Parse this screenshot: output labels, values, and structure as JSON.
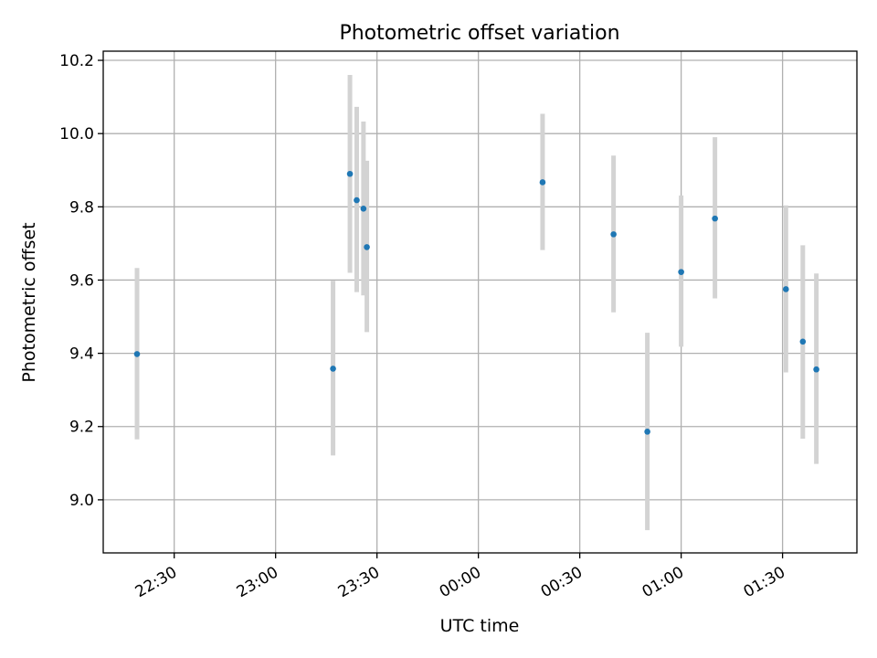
{
  "chart_data": {
    "type": "scatter",
    "title": "Photometric offset variation",
    "xlabel": "UTC time",
    "ylabel": "Photometric offset",
    "x_ticks": [
      "22:30",
      "23:00",
      "23:30",
      "00:00",
      "00:30",
      "01:00",
      "01:30"
    ],
    "y_ticks": [
      "9.0",
      "9.2",
      "9.4",
      "9.6",
      "9.8",
      "10.0",
      "10.2"
    ],
    "xlim": [
      "22:09",
      "01:52"
    ],
    "ylim": [
      8.855,
      10.225
    ],
    "grid": true,
    "errorbar_color": "#d3d3d3",
    "marker_color": "#1f77b4",
    "points": [
      {
        "time": "22:19",
        "y": 9.398,
        "yerr_low": 9.165,
        "yerr_high": 9.633
      },
      {
        "time": "23:17",
        "y": 9.358,
        "yerr_low": 9.121,
        "yerr_high": 9.598
      },
      {
        "time": "23:22",
        "y": 9.89,
        "yerr_low": 9.62,
        "yerr_high": 10.16
      },
      {
        "time": "23:24",
        "y": 9.818,
        "yerr_low": 9.567,
        "yerr_high": 10.073
      },
      {
        "time": "23:26",
        "y": 9.795,
        "yerr_low": 9.558,
        "yerr_high": 10.033
      },
      {
        "time": "23:27",
        "y": 9.69,
        "yerr_low": 9.458,
        "yerr_high": 9.926
      },
      {
        "time": "00:19",
        "y": 9.867,
        "yerr_low": 9.682,
        "yerr_high": 10.054
      },
      {
        "time": "00:40",
        "y": 9.725,
        "yerr_low": 9.512,
        "yerr_high": 9.94
      },
      {
        "time": "00:50",
        "y": 9.186,
        "yerr_low": 8.917,
        "yerr_high": 9.456
      },
      {
        "time": "01:00",
        "y": 9.622,
        "yerr_low": 9.418,
        "yerr_high": 9.831
      },
      {
        "time": "01:10",
        "y": 9.768,
        "yerr_low": 9.55,
        "yerr_high": 9.99
      },
      {
        "time": "01:31",
        "y": 9.575,
        "yerr_low": 9.348,
        "yerr_high": 9.804
      },
      {
        "time": "01:36",
        "y": 9.432,
        "yerr_low": 9.167,
        "yerr_high": 9.695
      },
      {
        "time": "01:40",
        "y": 9.356,
        "yerr_low": 9.098,
        "yerr_high": 9.618
      }
    ]
  }
}
